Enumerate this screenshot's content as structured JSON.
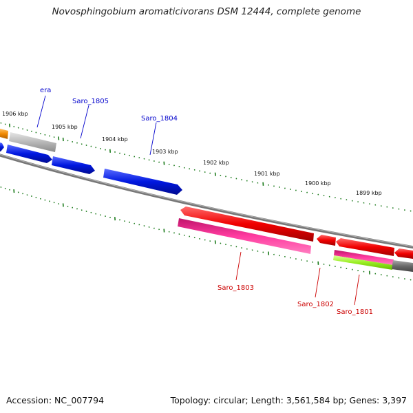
{
  "title": "Novosphingobium aromaticivorans DSM 12444, complete genome",
  "footer": {
    "accession": "Accession: NC_007794",
    "summary": "Topology: circular; Length: 3,561,584 bp; Genes: 3,397"
  },
  "colors": {
    "backbone": "#777777",
    "tick": "#1a7a1a",
    "forward_label": "#0000cc",
    "reverse_label": "#cc0000",
    "blue": "#0018e0",
    "red": "#f00000",
    "magenta": "#e0107a",
    "gray": "#b8b8b8",
    "orange": "#f08800",
    "lime": "#99ee22",
    "darkgray": "#6a6a6a"
  },
  "ticks": [
    "1906 kbp",
    "1905 kbp",
    "1904 kbp",
    "1903 kbp",
    "1902 kbp",
    "1901 kbp",
    "1900 kbp",
    "1899 kbp"
  ],
  "gene_labels": {
    "forward": [
      "era",
      "Saro_1805",
      "Saro_1804"
    ],
    "reverse": [
      "Saro_1803",
      "Saro_1802",
      "Saro_1801"
    ]
  }
}
